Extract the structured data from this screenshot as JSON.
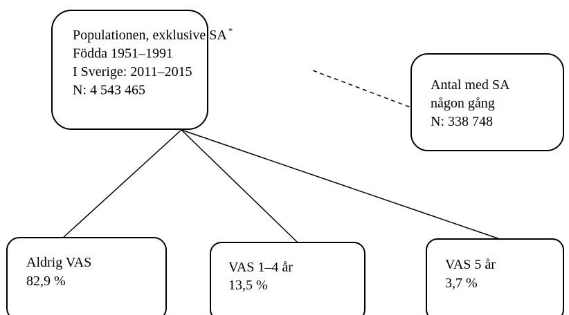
{
  "nodes": [
    {
      "lines": [
        "Populationen, exklusive SA",
        "Födda 1951–1991",
        "I Sverige: 2011–2015",
        "N: 4 543 465"
      ],
      "superscript": "*"
    },
    {
      "lines": [
        "Antal med SA",
        "någon gång",
        "N: 338 748"
      ]
    },
    {
      "lines": [
        "Aldrig VAS",
        "82,9 %"
      ]
    },
    {
      "lines": [
        "VAS 1–4 år",
        "13,5 %"
      ]
    },
    {
      "lines": [
        "VAS 5 år",
        "3,7 %"
      ]
    }
  ]
}
